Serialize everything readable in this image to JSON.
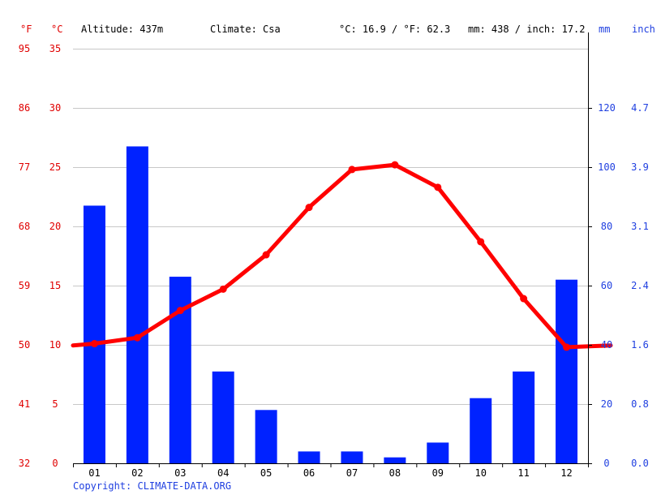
{
  "header": {
    "unit_f": "°F",
    "unit_c": "°C",
    "altitude": "Altitude: 437m",
    "climate": "Climate: Csa",
    "temp_avg": "°C: 16.9 / °F: 62.3",
    "precip_total": "mm: 438 / inch: 17.2",
    "unit_mm": "mm",
    "unit_inch": "inch"
  },
  "copyright": "Copyright: CLIMATE-DATA.ORG",
  "axes": {
    "fahrenheit_ticks": [
      "95",
      "86",
      "77",
      "68",
      "59",
      "50",
      "41",
      "32"
    ],
    "celsius_ticks": [
      "35",
      "30",
      "25",
      "20",
      "15",
      "10",
      "5",
      "0"
    ],
    "mm_ticks": [
      "120",
      "100",
      "80",
      "60",
      "40",
      "20",
      "0"
    ],
    "inch_ticks": [
      "4.7",
      "3.9",
      "3.1",
      "2.4",
      "1.6",
      "0.8",
      "0.0"
    ]
  },
  "colors": {
    "temperature": "#ff0000",
    "precipitation": "#0022ff",
    "grid": "#c8c8c8",
    "axis_red": "#e00000",
    "axis_blue": "#1f3fe0"
  },
  "chart_data": {
    "type": "bar",
    "categories": [
      "01",
      "02",
      "03",
      "04",
      "05",
      "06",
      "07",
      "08",
      "09",
      "10",
      "11",
      "12"
    ],
    "series": [
      {
        "type": "bar",
        "axis": "right",
        "values": [
          87,
          107,
          63,
          31,
          18,
          4,
          4,
          2,
          7,
          22,
          31,
          62
        ]
      },
      {
        "type": "line",
        "axis": "left",
        "values": [
          10.1,
          10.6,
          12.9,
          14.7,
          17.6,
          21.6,
          24.8,
          25.2,
          23.3,
          18.7,
          13.9,
          9.8
        ]
      }
    ],
    "y_left": {
      "unit": "°C",
      "range": [
        0,
        35
      ]
    },
    "y_left_alt": {
      "unit": "°F",
      "range": [
        32,
        95
      ]
    },
    "y_right": {
      "unit": "mm",
      "range": [
        0,
        140
      ]
    },
    "y_right_alt": {
      "unit": "inch"
    },
    "grid": true
  }
}
